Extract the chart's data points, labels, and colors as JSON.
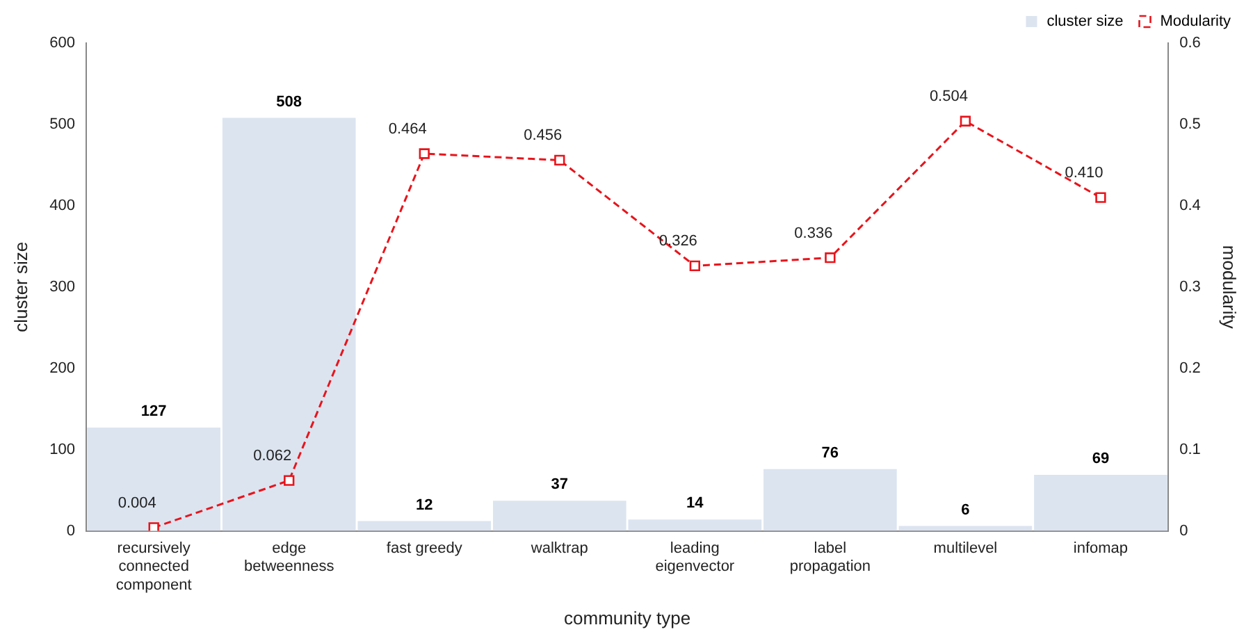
{
  "chart_data": {
    "type": "bar",
    "xlabel": "community type",
    "ylabel": "cluster size",
    "y2label": "modularity",
    "categories": [
      "recursively connected component",
      "edge betweenness",
      "fast greedy",
      "walktrap",
      "leading eigenvector",
      "label propagation",
      "multilevel",
      "infomap"
    ],
    "series": [
      {
        "name": "cluster size",
        "color": "#dce4f0",
        "values": [
          127,
          508,
          12,
          37,
          14,
          76,
          6,
          69
        ],
        "value_labels": [
          "127",
          "508",
          "12",
          "37",
          "14",
          "76",
          "6",
          "69"
        ]
      },
      {
        "name": "Modularity",
        "type": "line",
        "axis": "y2",
        "color": "#e8141b",
        "line_style": "dashed",
        "marker": "square",
        "values": [
          0.004,
          0.062,
          0.464,
          0.456,
          0.326,
          0.336,
          0.504,
          0.41
        ],
        "value_labels": [
          "0.004",
          "0.062",
          "0.464",
          "0.456",
          "0.326",
          "0.336",
          "0.504",
          "0.410"
        ]
      }
    ],
    "ylim": [
      0,
      600
    ],
    "yticks": [
      0,
      100,
      200,
      300,
      400,
      500,
      600
    ],
    "y2lim": [
      0,
      0.6
    ],
    "y2ticks": [
      0,
      0.1,
      0.2,
      0.3,
      0.4,
      0.5,
      0.6
    ],
    "grid": false,
    "legend": "top right"
  }
}
